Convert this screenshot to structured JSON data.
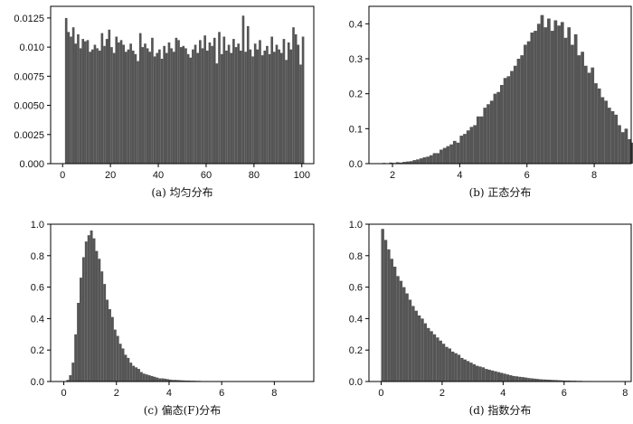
{
  "chart_data": [
    {
      "type": "bar",
      "caption": "(a) 均匀分布",
      "bar_color": "#555555",
      "xlim": [
        -5,
        105
      ],
      "ylim": [
        0,
        0.0135
      ],
      "xticks": [
        0,
        20,
        40,
        60,
        80,
        100
      ],
      "xtick_labels": [
        "0",
        "20",
        "40",
        "60",
        "80",
        "100"
      ],
      "yticks": [
        0,
        0.0025,
        0.005,
        0.0075,
        0.01,
        0.0125
      ],
      "ytick_labels": [
        "0.000",
        "0.0025",
        "0.0050",
        "0.0075",
        "0.010",
        "0.0125"
      ],
      "bin_start": 1,
      "bin_width": 1,
      "values": [
        0.0125,
        0.0113,
        0.0109,
        0.0117,
        0.0103,
        0.0111,
        0.0099,
        0.0107,
        0.0105,
        0.0106,
        0.0096,
        0.0098,
        0.0102,
        0.0099,
        0.0097,
        0.0112,
        0.0101,
        0.0107,
        0.0115,
        0.01,
        0.0095,
        0.0109,
        0.0104,
        0.0106,
        0.0102,
        0.0096,
        0.0098,
        0.0103,
        0.0097,
        0.0094,
        0.0088,
        0.0112,
        0.01,
        0.0103,
        0.0099,
        0.0096,
        0.0108,
        0.0092,
        0.0095,
        0.0098,
        0.009,
        0.0101,
        0.0095,
        0.0104,
        0.0099,
        0.0096,
        0.0108,
        0.0106,
        0.01,
        0.0101,
        0.0099,
        0.0094,
        0.0091,
        0.0098,
        0.0102,
        0.0095,
        0.0106,
        0.0099,
        0.011,
        0.0097,
        0.0104,
        0.0101,
        0.0108,
        0.0086,
        0.0113,
        0.0094,
        0.0109,
        0.0097,
        0.0102,
        0.0095,
        0.0107,
        0.01,
        0.0103,
        0.0097,
        0.0127,
        0.0096,
        0.0118,
        0.0098,
        0.0092,
        0.0103,
        0.0098,
        0.0106,
        0.0093,
        0.0097,
        0.0101,
        0.0094,
        0.0109,
        0.0096,
        0.0102,
        0.0098,
        0.0095,
        0.0107,
        0.0089,
        0.0104,
        0.0098,
        0.0117,
        0.0111,
        0.0102,
        0.0085,
        0.0109
      ]
    },
    {
      "type": "bar",
      "caption": "(b) 正态分布",
      "bar_color": "#555555",
      "xlim": [
        1.3,
        9.1
      ],
      "ylim": [
        0,
        0.45
      ],
      "xticks": [
        2,
        4,
        6,
        8
      ],
      "xtick_labels": [
        "2",
        "4",
        "6",
        "8"
      ],
      "yticks": [
        0,
        0.1,
        0.2,
        0.3,
        0.4
      ],
      "ytick_labels": [
        "0.0",
        "0.1",
        "0.2",
        "0.3",
        "0.4"
      ],
      "bin_start": 1.7,
      "bin_width": 0.1,
      "values": [
        0.002,
        0.001,
        0.003,
        0.002,
        0.004,
        0.003,
        0.005,
        0.006,
        0.007,
        0.01,
        0.012,
        0.015,
        0.018,
        0.02,
        0.024,
        0.03,
        0.03,
        0.04,
        0.045,
        0.05,
        0.055,
        0.065,
        0.06,
        0.08,
        0.085,
        0.095,
        0.105,
        0.11,
        0.135,
        0.135,
        0.16,
        0.17,
        0.18,
        0.2,
        0.205,
        0.225,
        0.245,
        0.25,
        0.265,
        0.28,
        0.3,
        0.31,
        0.34,
        0.35,
        0.375,
        0.38,
        0.4,
        0.425,
        0.39,
        0.415,
        0.38,
        0.41,
        0.395,
        0.405,
        0.36,
        0.39,
        0.34,
        0.37,
        0.31,
        0.32,
        0.28,
        0.26,
        0.275,
        0.23,
        0.215,
        0.19,
        0.18,
        0.16,
        0.15,
        0.14,
        0.11,
        0.09,
        0.1,
        0.07,
        0.06,
        0.05,
        0.045,
        0.04,
        0.03,
        0.025,
        0.02,
        0.015,
        0.012,
        0.01,
        0.008,
        0.006,
        0.005,
        0.004,
        0.003,
        0.002,
        0.002,
        0.001,
        0.001
      ]
    },
    {
      "type": "bar",
      "caption": "(c) 偏态(F)分布",
      "bar_color": "#555555",
      "xlim": [
        -0.5,
        9.5
      ],
      "ylim": [
        0,
        1.0
      ],
      "xticks": [
        0,
        2,
        4,
        6,
        8
      ],
      "xtick_labels": [
        "0",
        "2",
        "4",
        "6",
        "8"
      ],
      "yticks": [
        0,
        0.2,
        0.4,
        0.6,
        0.8,
        1.0
      ],
      "ytick_labels": [
        "0.0",
        "0.2",
        "0.4",
        "0.6",
        "0.8",
        "1.0"
      ],
      "bin_start": 0.1,
      "bin_width": 0.1,
      "values": [
        0.01,
        0.04,
        0.12,
        0.3,
        0.5,
        0.66,
        0.79,
        0.89,
        0.93,
        0.96,
        0.91,
        0.83,
        0.78,
        0.7,
        0.62,
        0.52,
        0.46,
        0.41,
        0.33,
        0.29,
        0.24,
        0.21,
        0.17,
        0.15,
        0.12,
        0.1,
        0.09,
        0.08,
        0.06,
        0.05,
        0.045,
        0.04,
        0.035,
        0.03,
        0.025,
        0.02,
        0.02,
        0.018,
        0.015,
        0.012,
        0.01,
        0.01,
        0.009,
        0.008,
        0.007,
        0.006,
        0.006,
        0.005,
        0.005,
        0.004,
        0.004,
        0.003,
        0.003,
        0.003,
        0.002,
        0.002,
        0.002,
        0.002,
        0.002,
        0.001,
        0.001,
        0.001,
        0.001,
        0.001,
        0.001,
        0.001,
        0.001,
        0.001,
        0.001,
        0.001,
        0.001,
        0.001,
        0.001,
        0.001,
        0.001,
        0.001,
        0.001,
        0.001,
        0.001,
        0.001,
        0.001,
        0.001,
        0.001,
        0.001,
        0.001
      ]
    },
    {
      "type": "bar",
      "caption": "(d) 指数分布",
      "bar_color": "#555555",
      "xlim": [
        -0.4,
        8.2
      ],
      "ylim": [
        0,
        1.0
      ],
      "xticks": [
        0,
        2,
        4,
        6,
        8
      ],
      "xtick_labels": [
        "0",
        "2",
        "4",
        "6",
        "8"
      ],
      "yticks": [
        0,
        0.2,
        0.4,
        0.6,
        0.8,
        1.0
      ],
      "ytick_labels": [
        "0.0",
        "0.2",
        "0.4",
        "0.6",
        "0.8",
        "1.0"
      ],
      "bin_start": 0,
      "bin_width": 0.1,
      "values": [
        0.97,
        0.9,
        0.84,
        0.78,
        0.73,
        0.67,
        0.64,
        0.6,
        0.56,
        0.52,
        0.48,
        0.45,
        0.42,
        0.4,
        0.37,
        0.34,
        0.32,
        0.3,
        0.28,
        0.26,
        0.24,
        0.22,
        0.21,
        0.19,
        0.18,
        0.17,
        0.15,
        0.14,
        0.13,
        0.12,
        0.11,
        0.1,
        0.095,
        0.09,
        0.08,
        0.075,
        0.07,
        0.065,
        0.06,
        0.055,
        0.05,
        0.045,
        0.04,
        0.035,
        0.033,
        0.03,
        0.028,
        0.025,
        0.022,
        0.02,
        0.018,
        0.016,
        0.014,
        0.013,
        0.012,
        0.011,
        0.01,
        0.009,
        0.008,
        0.007,
        0.006,
        0.006,
        0.005,
        0.005,
        0.004,
        0.004,
        0.003,
        0.003,
        0.003,
        0.002,
        0.002,
        0.002,
        0.002,
        0.001,
        0.001,
        0.001,
        0.001,
        0.001
      ]
    }
  ]
}
